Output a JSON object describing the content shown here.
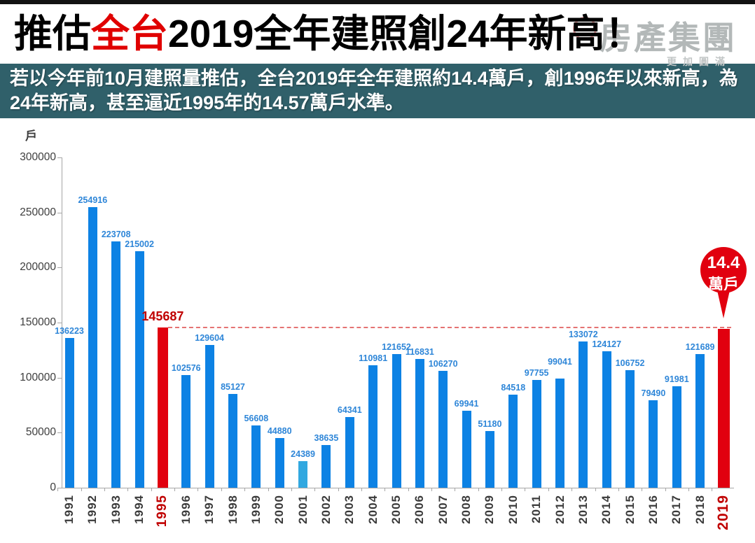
{
  "header": {
    "title_prefix": "推估",
    "title_highlight": "全台",
    "title_suffix": "2019全年建照創24年新高！",
    "watermark": {
      "main": "房產集團",
      "tagline": "更加圓滿"
    }
  },
  "subtitle": {
    "text": "若以今年前10月建照量推估，全台2019年全年建照約14.4萬戶，創1996年以來新高，為24年新高，甚至逼近1995年的14.57萬戶水準。"
  },
  "chart_data": {
    "type": "bar",
    "title": "",
    "xlabel": "",
    "ylabel": "戶",
    "unit_label": "戶",
    "ylim": [
      0,
      300000
    ],
    "yticks": [
      0,
      50000,
      100000,
      150000,
      200000,
      250000,
      300000
    ],
    "grid": false,
    "legend": false,
    "categories": [
      "1991",
      "1992",
      "1993",
      "1994",
      "1995",
      "1996",
      "1997",
      "1998",
      "1999",
      "2000",
      "2001",
      "2002",
      "2003",
      "2004",
      "2005",
      "2006",
      "2007",
      "2008",
      "2009",
      "2010",
      "2011",
      "2012",
      "2013",
      "2014",
      "2015",
      "2016",
      "2017",
      "2018",
      "2019"
    ],
    "values": [
      136223,
      254916,
      223708,
      215002,
      145687,
      102576,
      129604,
      85127,
      56608,
      44880,
      24389,
      38635,
      64341,
      110981,
      121652,
      116831,
      106270,
      69941,
      51180,
      84518,
      97755,
      99041,
      133072,
      124127,
      106752,
      79490,
      91981,
      121689,
      144000
    ],
    "highlighted_categories": [
      "1995",
      "2019"
    ],
    "light_category": "2001",
    "reference_line": {
      "category": "1995",
      "value": 145687,
      "label": "145687",
      "style": "dashed"
    },
    "callout": {
      "category": "2019",
      "line1": "14.4",
      "line2": "萬戶",
      "text": "14.4萬戶",
      "estimated_value": 144000
    },
    "colors": {
      "bar": "#0d82e4",
      "bar_light": "#31a8e0",
      "highlight": "#e1000f",
      "value_label": "#2e86d8",
      "reference_label": "#c00000",
      "reference_line": "#e57373",
      "axis": "#a6a6a6",
      "tick_text": "#3d3d3d",
      "subtitle_bg": "#30606a",
      "title_highlight": "#e00000"
    }
  }
}
